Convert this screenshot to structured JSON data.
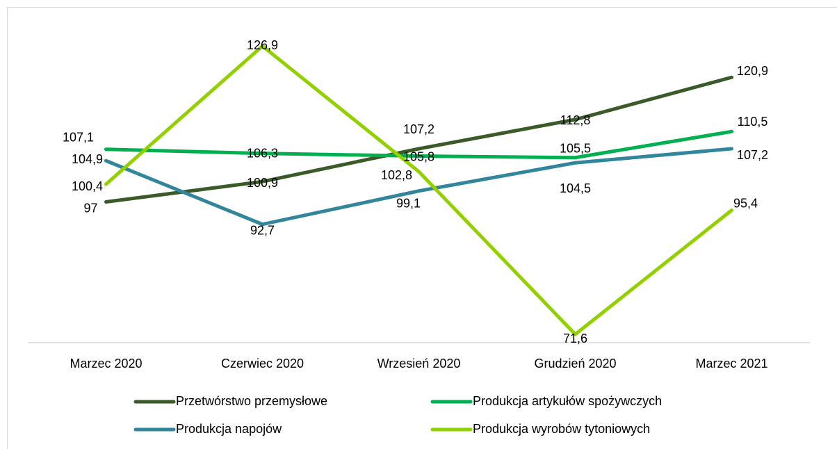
{
  "chart_data": {
    "type": "line",
    "categories": [
      "Marzec 2020",
      "Czerwiec 2020",
      "Wrzesień 2020",
      "Grudzień 2020",
      "Marzec 2021"
    ],
    "ylim": [
      70,
      130
    ],
    "series": [
      {
        "name": "Przetwórstwo przemysłowe",
        "color": "#3a5a27",
        "values": [
          97,
          100.9,
          107.2,
          112.8,
          120.9
        ],
        "value_labels": [
          "97",
          "100,9",
          "107,2",
          "112,8",
          "120,9"
        ]
      },
      {
        "name": "Produkcja artykułów spożywczych",
        "color": "#00b050",
        "values": [
          107.1,
          106.3,
          105.8,
          105.5,
          110.5
        ],
        "value_labels": [
          "107,1",
          "106,3",
          "105,8",
          "105,5",
          "110,5"
        ]
      },
      {
        "name": "Produkcja napojów",
        "color": "#31869b",
        "values": [
          104.9,
          92.7,
          99.1,
          104.5,
          107.2
        ],
        "value_labels": [
          "104,9",
          "92,7",
          "99,1",
          "104,5",
          "107,2"
        ]
      },
      {
        "name": "Produkcja wyrobów tytoniowych",
        "color": "#92d000",
        "values": [
          100.4,
          126.9,
          102.8,
          71.6,
          95.4
        ],
        "value_labels": [
          "100,4",
          "126,9",
          "102,8",
          "71,6",
          "95,4"
        ]
      }
    ],
    "legend": "bottom"
  }
}
